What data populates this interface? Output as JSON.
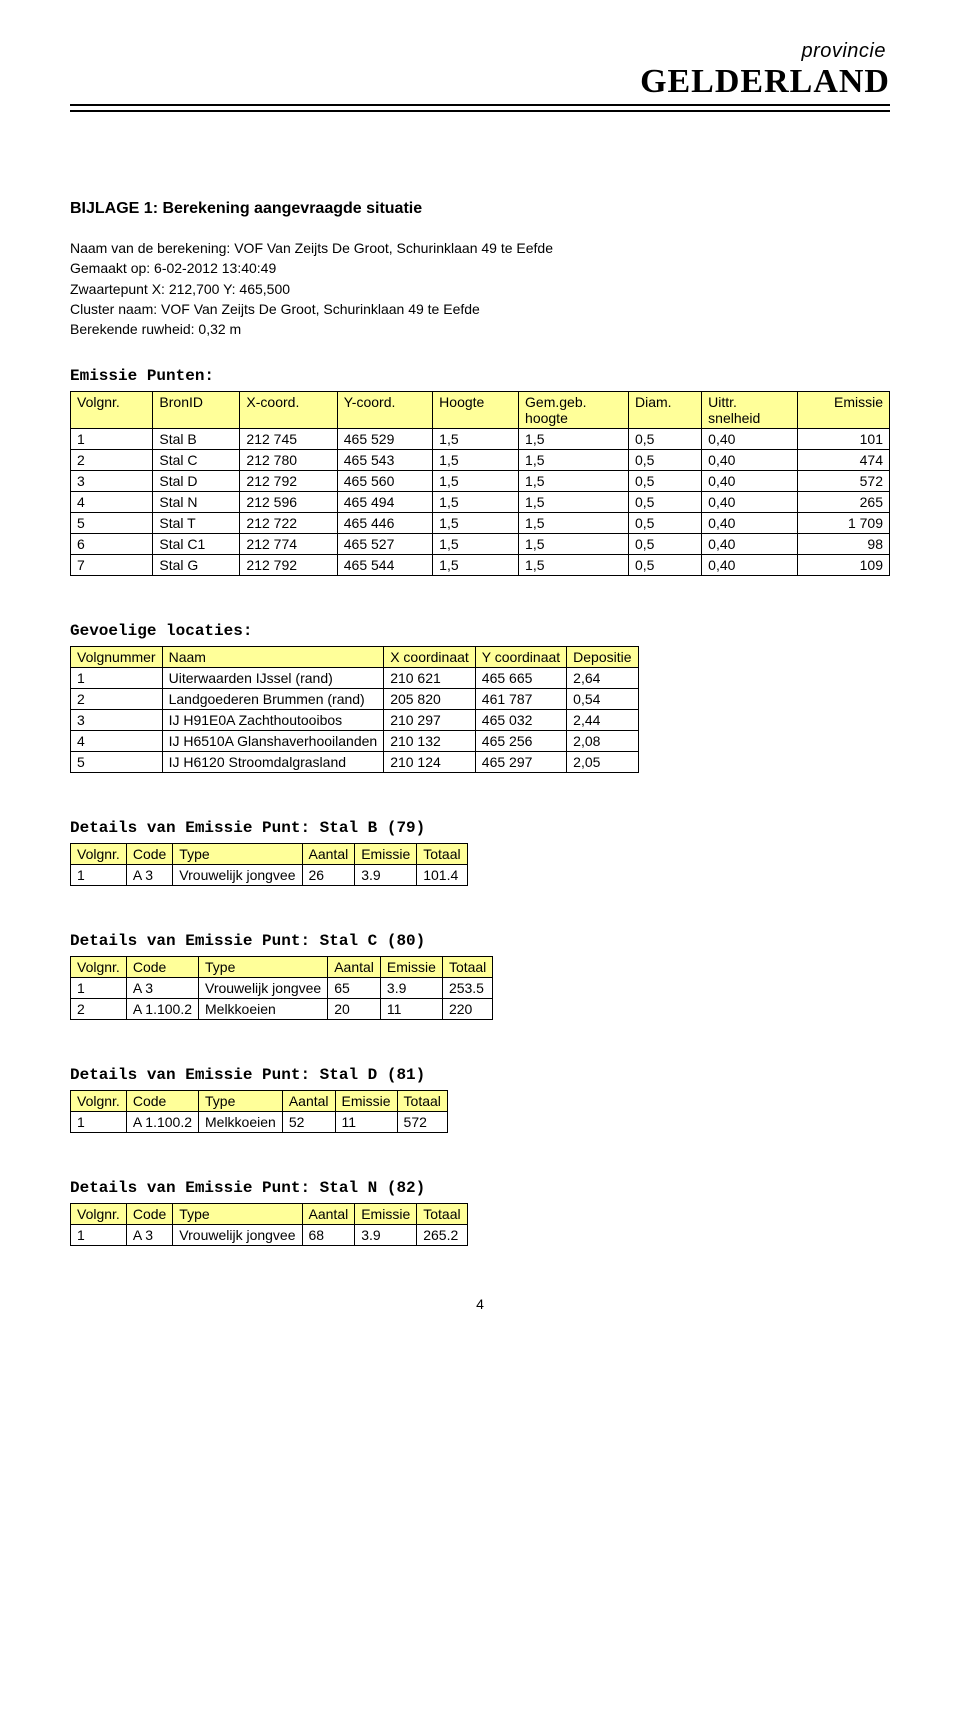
{
  "logo": {
    "provincie": "provincie",
    "name": "GELDERLAND"
  },
  "title": "BIJLAGE 1: Berekening aangevraagde situatie",
  "meta": {
    "line1": "Naam van de berekening: VOF Van Zeijts De Groot, Schurinklaan 49 te Eefde",
    "line2": "Gemaakt op: 6-02-2012  13:40:49",
    "line3": "Zwaartepunt X:  212,700 Y:  465,500",
    "line4": "Cluster naam: VOF Van Zeijts De Groot, Schurinklaan 49 te Eefde",
    "line5": "Berekende ruwheid: 0,32 m"
  },
  "emissie": {
    "heading": "Emissie Punten:",
    "header_bg": "#ffff99",
    "columns": [
      "Volgnr.",
      "BronID",
      "X-coord.",
      "Y-coord.",
      "Hoogte",
      "Gem.geb. hoogte",
      "Diam.",
      "Uittr. snelheid",
      "Emissie"
    ],
    "rows": [
      [
        "1",
        "Stal B",
        "212 745",
        "465 529",
        "1,5",
        "1,5",
        "0,5",
        "0,40",
        "101"
      ],
      [
        "2",
        "Stal C",
        "212 780",
        "465 543",
        "1,5",
        "1,5",
        "0,5",
        "0,40",
        "474"
      ],
      [
        "3",
        "Stal D",
        "212 792",
        "465 560",
        "1,5",
        "1,5",
        "0,5",
        "0,40",
        "572"
      ],
      [
        "4",
        "Stal N",
        "212 596",
        "465 494",
        "1,5",
        "1,5",
        "0,5",
        "0,40",
        "265"
      ],
      [
        "5",
        "Stal T",
        "212 722",
        "465 446",
        "1,5",
        "1,5",
        "0,5",
        "0,40",
        "1 709"
      ],
      [
        "6",
        "Stal C1",
        "212 774",
        "465 527",
        "1,5",
        "1,5",
        "0,5",
        "0,40",
        "98"
      ],
      [
        "7",
        "Stal G",
        "212 792",
        "465 544",
        "1,5",
        "1,5",
        "0,5",
        "0,40",
        "109"
      ]
    ]
  },
  "gevoelige": {
    "heading": "Gevoelige locaties:",
    "header_bg": "#ffff99",
    "columns": [
      "Volgnummer",
      "Naam",
      "X coordinaat",
      "Y coordinaat",
      "Depositie"
    ],
    "rows": [
      [
        "1",
        "Uiterwaarden IJssel (rand)",
        "210 621",
        "465 665",
        "2,64"
      ],
      [
        "2",
        "Landgoederen Brummen (rand)",
        "205 820",
        "461 787",
        "0,54"
      ],
      [
        "3",
        "IJ H91E0A Zachthoutooibos",
        "210 297",
        "465 032",
        "2,44"
      ],
      [
        "4",
        "IJ H6510A Glanshaverhooilanden",
        "210 132",
        "465 256",
        "2,08"
      ],
      [
        "5",
        "IJ H6120 Stroomdalgrasland",
        "210 124",
        "465 297",
        "2,05"
      ]
    ]
  },
  "details": [
    {
      "heading": "Details van Emissie Punt: Stal B (79)",
      "header_bg": "#ffff99",
      "columns": [
        "Volgnr.",
        "Code",
        "Type",
        "Aantal",
        "Emissie",
        "Totaal"
      ],
      "rows": [
        [
          "1",
          "A 3",
          "Vrouwelijk jongvee",
          "26",
          "3.9",
          "101.4"
        ]
      ]
    },
    {
      "heading": "Details van Emissie Punt: Stal C (80)",
      "header_bg": "#ffff99",
      "columns": [
        "Volgnr.",
        "Code",
        "Type",
        "Aantal",
        "Emissie",
        "Totaal"
      ],
      "rows": [
        [
          "1",
          "A 3",
          "Vrouwelijk jongvee",
          "65",
          "3.9",
          "253.5"
        ],
        [
          "2",
          "A 1.100.2",
          "Melkkoeien",
          "20",
          "11",
          "220"
        ]
      ]
    },
    {
      "heading": "Details van Emissie Punt: Stal D (81)",
      "header_bg": "#ffff99",
      "columns": [
        "Volgnr.",
        "Code",
        "Type",
        "Aantal",
        "Emissie",
        "Totaal"
      ],
      "rows": [
        [
          "1",
          "A 1.100.2",
          "Melkkoeien",
          "52",
          "11",
          "572"
        ]
      ]
    },
    {
      "heading": "Details van Emissie Punt: Stal N (82)",
      "header_bg": "#ffff99",
      "columns": [
        "Volgnr.",
        "Code",
        "Type",
        "Aantal",
        "Emissie",
        "Totaal"
      ],
      "rows": [
        [
          "1",
          "A 3",
          "Vrouwelijk jongvee",
          "68",
          "3.9",
          "265.2"
        ]
      ]
    }
  ],
  "page_number": "4"
}
